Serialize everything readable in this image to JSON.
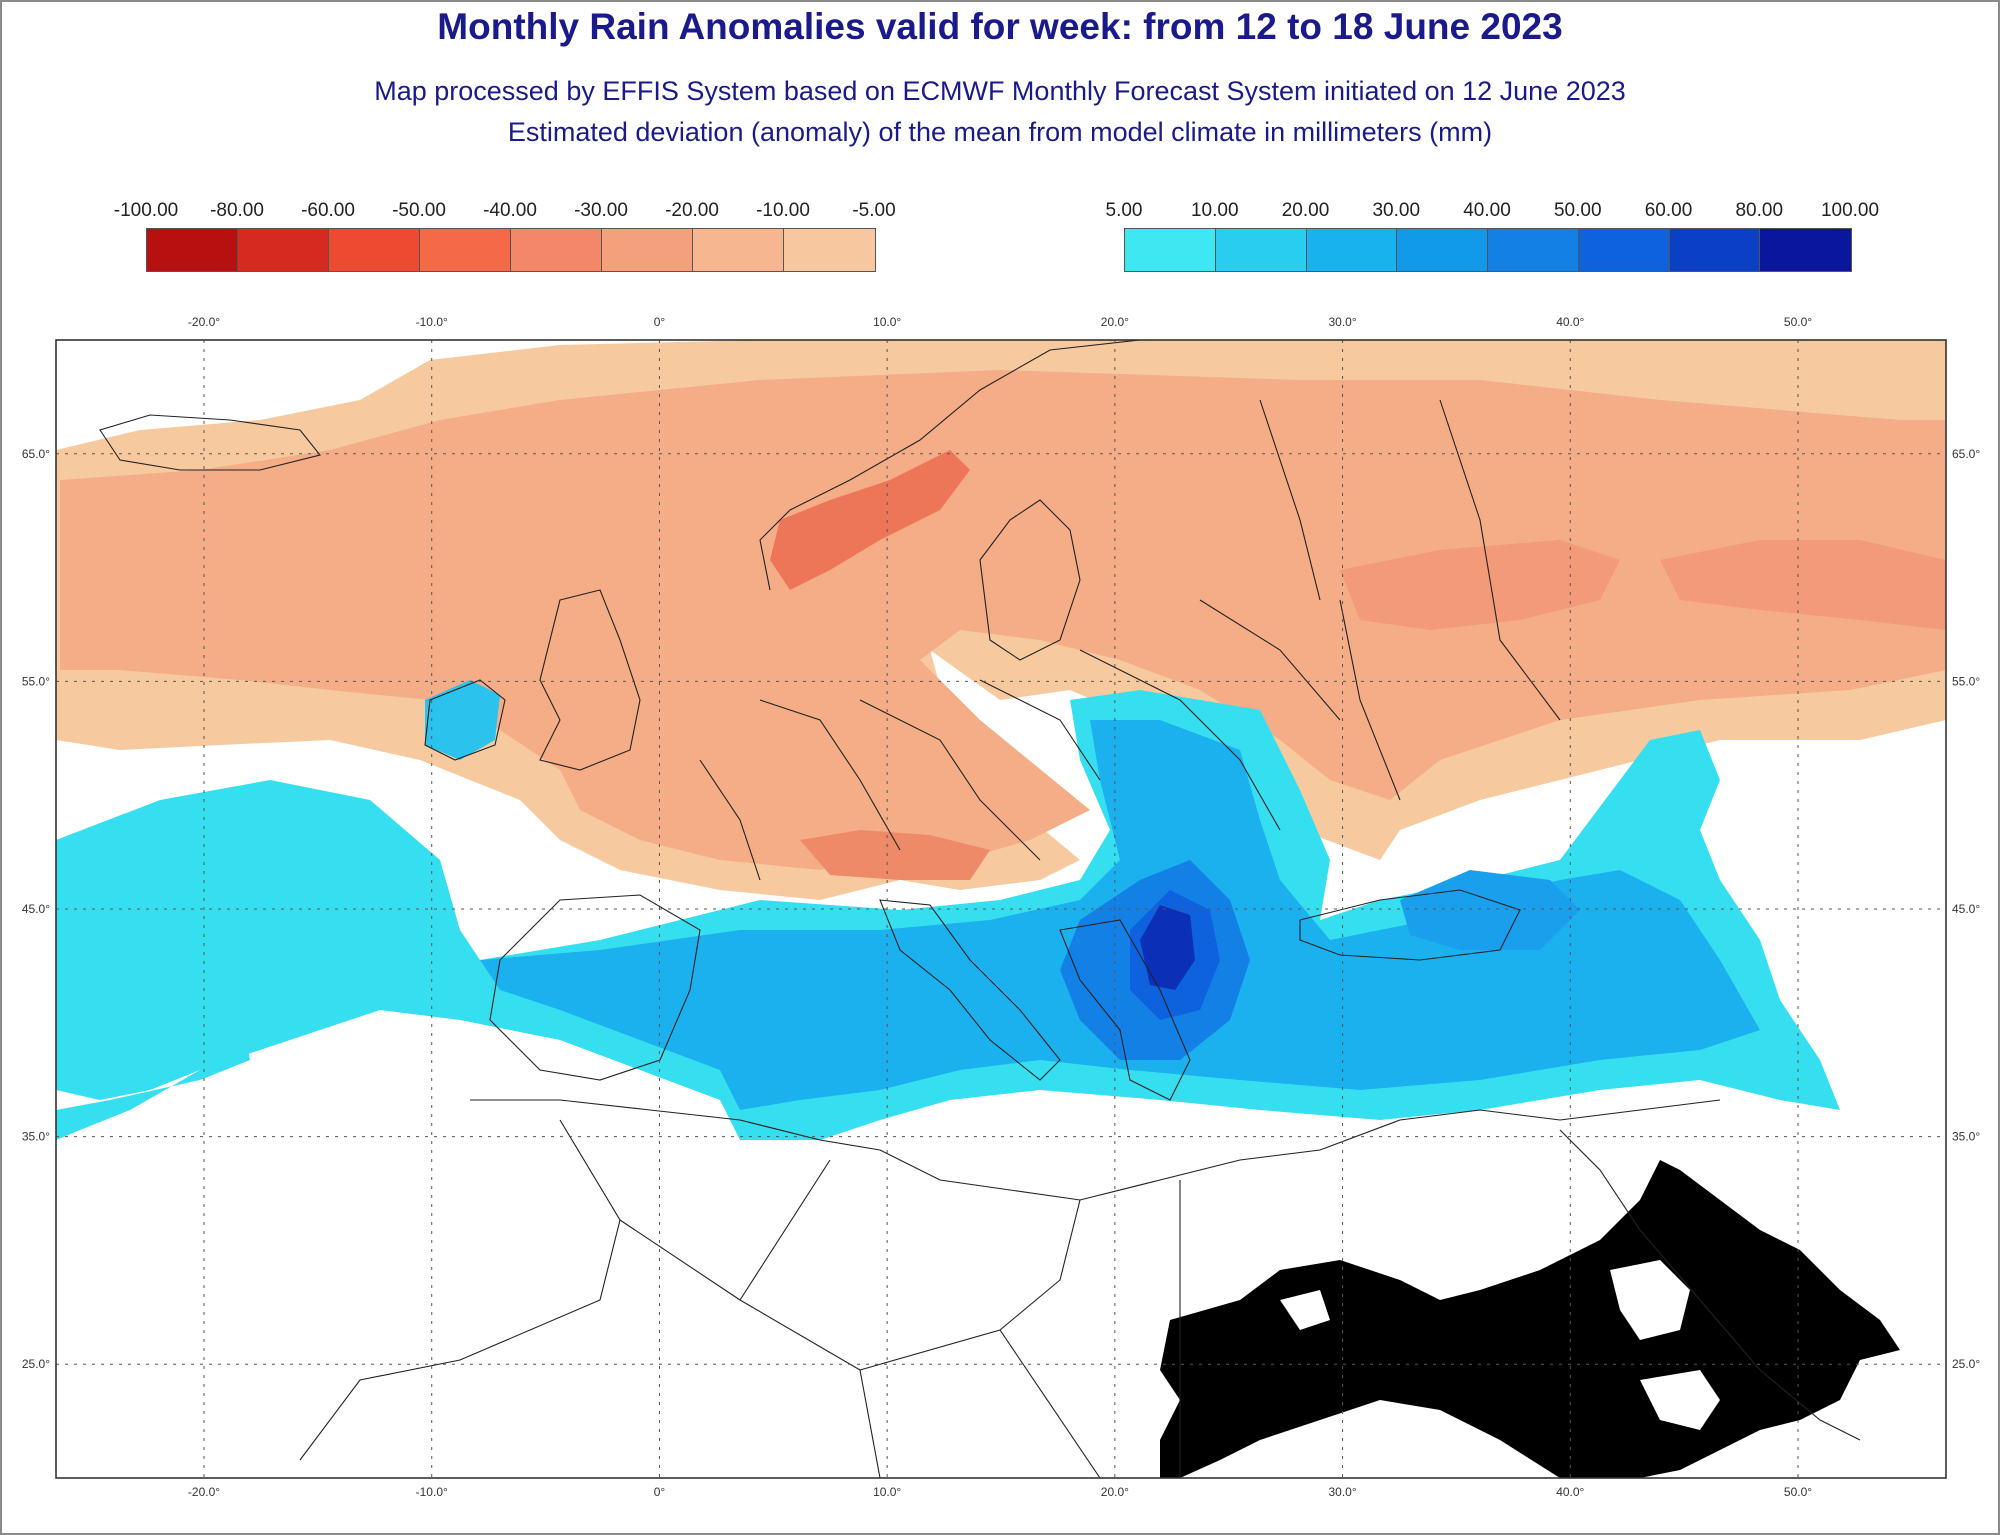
{
  "title": "Monthly Rain Anomalies valid for week: from 12 to 18 June 2023",
  "subtitle": "Map processed by EFFIS System based on ECMWF Monthly Forecast System initiated on 12 June 2023",
  "subtitle2": "Estimated deviation (anomaly) of the mean from model climate in millimeters (mm)",
  "legend_negative": {
    "labels": [
      "-100.00",
      "-80.00",
      "-60.00",
      "-50.00",
      "-40.00",
      "-30.00",
      "-20.00",
      "-10.00",
      "-5.00"
    ],
    "colors": [
      "#b81010",
      "#d62a20",
      "#ee4a32",
      "#f46a48",
      "#f4866a",
      "#f5a07c",
      "#f6b690",
      "#f7c8a0"
    ]
  },
  "legend_positive": {
    "labels": [
      "5.00",
      "10.00",
      "20.00",
      "30.00",
      "40.00",
      "50.00",
      "60.00",
      "80.00",
      "100.00"
    ],
    "colors": [
      "#3ee8f2",
      "#28cdf0",
      "#18b2ee",
      "#129aea",
      "#1380e6",
      "#0f62de",
      "#0b3fc6",
      "#0a169e"
    ]
  },
  "longitude_labels": [
    "-20.0°",
    "-10.0°",
    "0°",
    "10.0°",
    "20.0°",
    "30.0°",
    "40.0°",
    "50.0°"
  ],
  "latitude_labels": [
    "65.0°",
    "55.0°",
    "45.0°",
    "35.0°",
    "25.0°"
  ],
  "map": {
    "lon_range": [
      -26.5,
      56.5
    ],
    "lat_range": [
      20,
      70
    ]
  }
}
